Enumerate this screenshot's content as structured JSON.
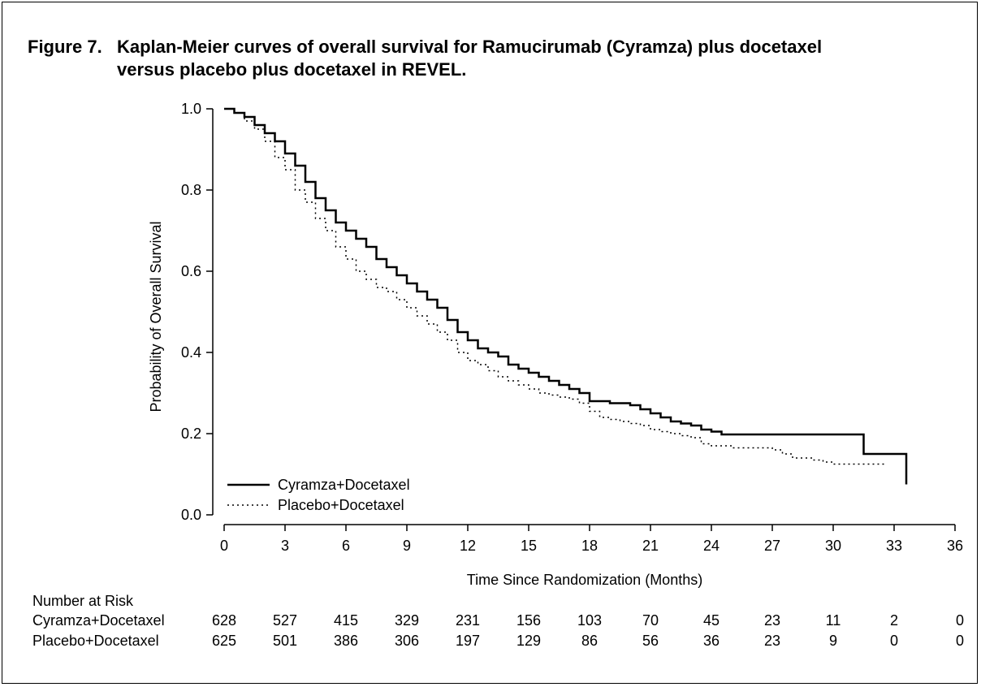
{
  "figure": {
    "label": "Figure 7.",
    "title_line1": "Kaplan-Meier curves of overall survival for Ramucirumab (Cyramza) plus docetaxel",
    "title_line2": "versus placebo plus docetaxel in REVEL."
  },
  "chart_data": {
    "type": "line",
    "subtype": "kaplan-meier step",
    "xlabel": "Time Since Randomization (Months)",
    "ylabel": "Probability of Overall Survival",
    "xlim": [
      0,
      36
    ],
    "ylim": [
      0,
      1
    ],
    "xticks": [
      "0",
      "3",
      "6",
      "9",
      "12",
      "15",
      "18",
      "21",
      "24",
      "27",
      "30",
      "33",
      "36"
    ],
    "yticks": [
      "0.0",
      "0.2",
      "0.4",
      "0.6",
      "0.8",
      "1.0"
    ],
    "legend_position": "bottom-left",
    "series": [
      {
        "name": "Cyramza+Docetaxel",
        "style": "solid",
        "color": "#000000",
        "x": [
          0,
          0.5,
          1,
          1.5,
          2,
          2.5,
          3,
          3.5,
          4,
          4.5,
          5,
          5.5,
          6,
          6.5,
          7,
          7.5,
          8,
          8.5,
          9,
          9.5,
          10,
          10.5,
          11,
          11.5,
          12,
          12.5,
          13,
          13.5,
          14,
          14.5,
          15,
          15.5,
          16,
          16.5,
          17,
          17.5,
          18,
          18.5,
          19,
          19.5,
          20,
          20.5,
          21,
          21.5,
          22,
          22.5,
          23,
          23.5,
          24,
          24.5,
          25,
          26,
          27,
          28,
          29,
          30,
          31.5,
          32.5,
          33.6
        ],
        "y": [
          1.0,
          0.99,
          0.98,
          0.96,
          0.94,
          0.92,
          0.89,
          0.86,
          0.82,
          0.78,
          0.75,
          0.72,
          0.7,
          0.68,
          0.66,
          0.63,
          0.61,
          0.59,
          0.57,
          0.55,
          0.53,
          0.51,
          0.48,
          0.45,
          0.43,
          0.41,
          0.4,
          0.39,
          0.37,
          0.36,
          0.35,
          0.34,
          0.33,
          0.32,
          0.31,
          0.3,
          0.28,
          0.28,
          0.275,
          0.275,
          0.27,
          0.26,
          0.25,
          0.24,
          0.23,
          0.225,
          0.22,
          0.21,
          0.205,
          0.198,
          0.198,
          0.198,
          0.198,
          0.198,
          0.198,
          0.198,
          0.15,
          0.15,
          0.075
        ]
      },
      {
        "name": "Placebo+Docetaxel",
        "style": "dotted",
        "color": "#000000",
        "x": [
          0,
          0.5,
          1,
          1.5,
          2,
          2.5,
          3,
          3.5,
          4,
          4.5,
          5,
          5.5,
          6,
          6.5,
          7,
          7.5,
          8,
          8.5,
          9,
          9.5,
          10,
          10.5,
          11,
          11.5,
          12,
          12.5,
          13,
          13.5,
          14,
          14.5,
          15,
          15.5,
          16,
          16.5,
          17,
          17.5,
          18,
          18.5,
          19,
          19.5,
          20,
          20.5,
          21,
          21.5,
          22,
          22.5,
          23,
          23.5,
          24,
          24.5,
          25,
          26,
          27,
          27.5,
          28,
          29,
          29.5,
          30,
          31,
          32.5
        ],
        "y": [
          1.0,
          0.99,
          0.97,
          0.95,
          0.92,
          0.88,
          0.85,
          0.8,
          0.77,
          0.73,
          0.7,
          0.66,
          0.63,
          0.6,
          0.58,
          0.56,
          0.55,
          0.53,
          0.51,
          0.49,
          0.47,
          0.45,
          0.43,
          0.4,
          0.38,
          0.37,
          0.355,
          0.34,
          0.33,
          0.32,
          0.31,
          0.3,
          0.295,
          0.29,
          0.285,
          0.275,
          0.255,
          0.24,
          0.235,
          0.23,
          0.225,
          0.22,
          0.21,
          0.205,
          0.2,
          0.195,
          0.19,
          0.175,
          0.17,
          0.17,
          0.165,
          0.165,
          0.16,
          0.15,
          0.14,
          0.135,
          0.13,
          0.125,
          0.125,
          0.125
        ]
      }
    ]
  },
  "risk_table": {
    "heading": "Number at Risk",
    "rows": [
      {
        "label": "Cyramza+Docetaxel",
        "values": [
          "628",
          "527",
          "415",
          "329",
          "231",
          "156",
          "103",
          "70",
          "45",
          "23",
          "11",
          "2",
          "0"
        ]
      },
      {
        "label": "Placebo+Docetaxel",
        "values": [
          "625",
          "501",
          "386",
          "306",
          "197",
          "129",
          "86",
          "56",
          "36",
          "23",
          "9",
          "0",
          "0"
        ]
      }
    ]
  }
}
